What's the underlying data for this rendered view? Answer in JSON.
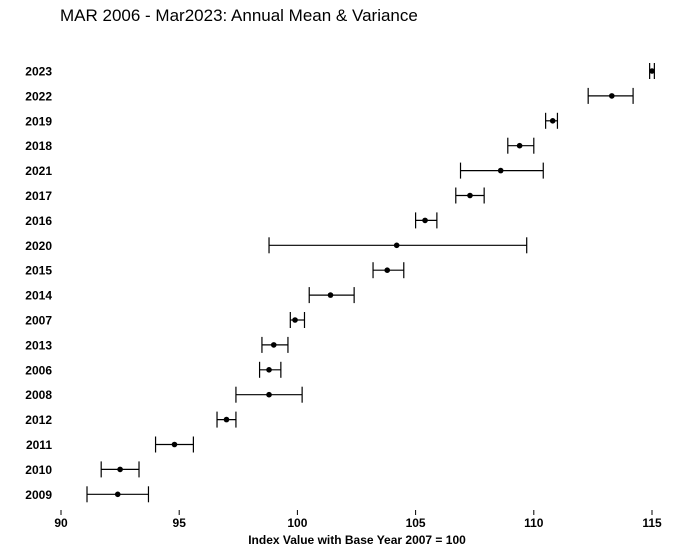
{
  "chart_data": {
    "type": "errorbar",
    "title": "MAR 2006 - Mar2023: Annual Mean & Variance",
    "xlabel": "Index Value with Base Year 2007 = 100",
    "ylabel": "",
    "xlim": [
      90,
      115
    ],
    "xticks": [
      90,
      95,
      100,
      105,
      110,
      115
    ],
    "grid": false,
    "legend": "none",
    "colors": {
      "marker": "#000000",
      "line": "#000000"
    },
    "points": [
      {
        "label": "2023",
        "mean": 115.0,
        "low": 114.9,
        "high": 115.1
      },
      {
        "label": "2022",
        "mean": 113.3,
        "low": 112.3,
        "high": 114.2
      },
      {
        "label": "2019",
        "mean": 110.8,
        "low": 110.5,
        "high": 111.0
      },
      {
        "label": "2018",
        "mean": 109.4,
        "low": 108.9,
        "high": 110.0
      },
      {
        "label": "2021",
        "mean": 108.6,
        "low": 106.9,
        "high": 110.4
      },
      {
        "label": "2017",
        "mean": 107.3,
        "low": 106.7,
        "high": 107.9
      },
      {
        "label": "2016",
        "mean": 105.4,
        "low": 105.0,
        "high": 105.9
      },
      {
        "label": "2020",
        "mean": 104.2,
        "low": 98.8,
        "high": 109.7
      },
      {
        "label": "2015",
        "mean": 103.8,
        "low": 103.2,
        "high": 104.5
      },
      {
        "label": "2014",
        "mean": 101.4,
        "low": 100.5,
        "high": 102.4
      },
      {
        "label": "2007",
        "mean": 99.9,
        "low": 99.7,
        "high": 100.3
      },
      {
        "label": "2013",
        "mean": 99.0,
        "low": 98.5,
        "high": 99.6
      },
      {
        "label": "2006",
        "mean": 98.8,
        "low": 98.4,
        "high": 99.3
      },
      {
        "label": "2008",
        "mean": 98.8,
        "low": 97.4,
        "high": 100.2
      },
      {
        "label": "2012",
        "mean": 97.0,
        "low": 96.6,
        "high": 97.4
      },
      {
        "label": "2011",
        "mean": 94.8,
        "low": 94.0,
        "high": 95.6
      },
      {
        "label": "2010",
        "mean": 92.5,
        "low": 91.7,
        "high": 93.3
      },
      {
        "label": "2009",
        "mean": 92.4,
        "low": 91.1,
        "high": 93.7
      }
    ]
  }
}
